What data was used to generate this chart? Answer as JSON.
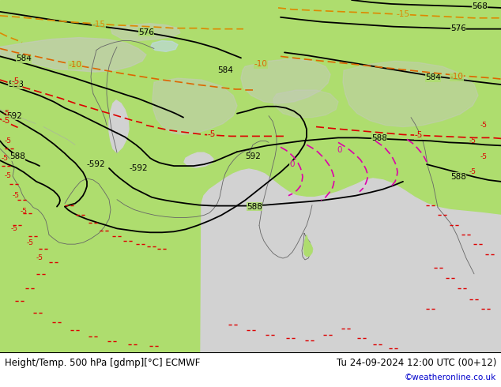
{
  "title_left": "Height/Temp. 500 hPa [gdmp][°C] ECMWF",
  "title_right": "Tu 24-09-2024 12:00 UTC (00+12)",
  "credit": "©weatheronline.co.uk",
  "bg_land_color": "#aedd6e",
  "bg_sea_color": "#d2d2d2",
  "bg_highland_color": "#c8c8c8",
  "contour_color": "#000000",
  "temp_neg5_color": "#dd0000",
  "temp_neg10_color": "#dd6600",
  "temp_neg15_color": "#dd8800",
  "temp_pos0_color": "#dd00aa",
  "footer_bg": "#ffffff",
  "footer_text_color": "#000000",
  "credit_color": "#0000cc",
  "fig_width": 6.34,
  "fig_height": 4.9,
  "dpi": 100
}
